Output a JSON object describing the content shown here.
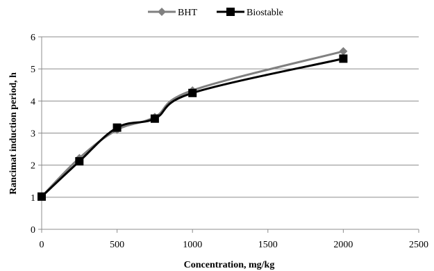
{
  "chart_data": {
    "type": "line",
    "title": "",
    "xlabel": "Concentration, mg/kg",
    "ylabel": "Rancimat induction period, h",
    "xlim": [
      0,
      2500
    ],
    "ylim": [
      0,
      6
    ],
    "xticks": [
      "0",
      "500",
      "1000",
      "1500",
      "2000",
      "2500"
    ],
    "yticks": [
      "0",
      "1",
      "2",
      "3",
      "4",
      "5",
      "6"
    ],
    "grid": true,
    "legend_position": "top",
    "series": [
      {
        "name": "BHT",
        "color": "#808080",
        "marker": "diamond",
        "x": [
          0,
          250,
          500,
          750,
          1000,
          2000
        ],
        "y": [
          1.02,
          2.22,
          3.1,
          3.5,
          4.33,
          5.55
        ]
      },
      {
        "name": "Biostable",
        "color": "#000000",
        "marker": "square",
        "x": [
          0,
          250,
          500,
          750,
          1000,
          2000
        ],
        "y": [
          1.02,
          2.12,
          3.17,
          3.45,
          4.25,
          5.32
        ]
      }
    ]
  }
}
